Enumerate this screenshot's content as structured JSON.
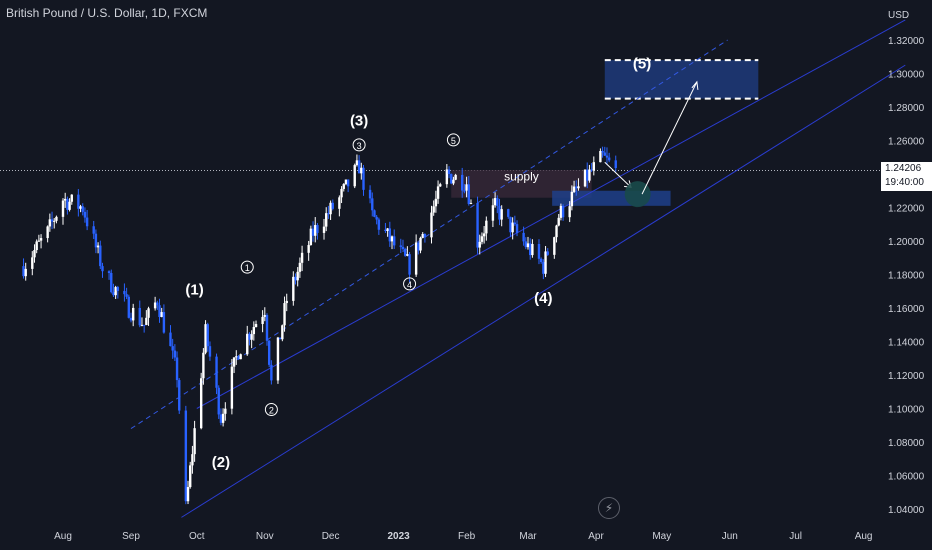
{
  "header": {
    "title": "British Pound / U.S. Dollar, 1D, FXCM"
  },
  "price_axis": {
    "currency": "USD",
    "ticks": [
      "1.32000",
      "1.30000",
      "1.28000",
      "1.26000",
      "1.22000",
      "1.20000",
      "1.18000",
      "1.16000",
      "1.14000",
      "1.12000",
      "1.10000",
      "1.08000",
      "1.06000",
      "1.04000"
    ]
  },
  "time_axis": {
    "ticks": [
      "Aug",
      "Sep",
      "Oct",
      "Nov",
      "Dec",
      "2023",
      "Feb",
      "Mar",
      "Apr",
      "May",
      "Jun",
      "Jul",
      "Aug"
    ]
  },
  "last_price": {
    "value": "1.24206",
    "countdown": "19:40:00"
  },
  "annotations": {
    "wave_major": [
      "(1)",
      "(2)",
      "(3)",
      "(4)",
      "(5)"
    ],
    "wave_minor": [
      "1",
      "2",
      "3",
      "4",
      "5"
    ],
    "supply_label": "supply"
  },
  "colors": {
    "background": "#131722",
    "candle_up": "#ffffff",
    "candle_down": "#2962ff",
    "channel": "#2a3ccf",
    "target_box": "#1e3a7a",
    "axis_text": "#d1d4dc"
  },
  "chart_data": {
    "type": "candlestick",
    "title": "British Pound / U.S. Dollar, 1D, FXCM",
    "ylabel": "USD",
    "ylim": [
      1.035,
      1.335
    ],
    "x_ticks": [
      "Aug",
      "Sep",
      "Oct",
      "Nov",
      "Dec",
      "2023",
      "Feb",
      "Mar",
      "Apr",
      "May",
      "Jun",
      "Jul",
      "Aug"
    ],
    "close_path": [
      {
        "date": "2022-07-14",
        "close": 1.185
      },
      {
        "date": "2022-07-25",
        "close": 1.205
      },
      {
        "date": "2022-08-01",
        "close": 1.225
      },
      {
        "date": "2022-08-10",
        "close": 1.22
      },
      {
        "date": "2022-08-20",
        "close": 1.18
      },
      {
        "date": "2022-08-31",
        "close": 1.16
      },
      {
        "date": "2022-09-07",
        "close": 1.15
      },
      {
        "date": "2022-09-13",
        "close": 1.165
      },
      {
        "date": "2022-09-22",
        "close": 1.12
      },
      {
        "date": "2022-09-26",
        "close": 1.04
      },
      {
        "date": "2022-10-05",
        "close": 1.145
      },
      {
        "date": "2022-10-12",
        "close": 1.095
      },
      {
        "date": "2022-10-20",
        "close": 1.135
      },
      {
        "date": "2022-11-01",
        "close": 1.16
      },
      {
        "date": "2022-11-04",
        "close": 1.115
      },
      {
        "date": "2022-11-11",
        "close": 1.165
      },
      {
        "date": "2022-11-23",
        "close": 1.205
      },
      {
        "date": "2022-12-05",
        "close": 1.225
      },
      {
        "date": "2022-12-14",
        "close": 1.245
      },
      {
        "date": "2022-12-20",
        "close": 1.215
      },
      {
        "date": "2023-01-06",
        "close": 1.185
      },
      {
        "date": "2023-01-23",
        "close": 1.24
      },
      {
        "date": "2023-02-01",
        "close": 1.235
      },
      {
        "date": "2023-02-06",
        "close": 1.2
      },
      {
        "date": "2023-02-14",
        "close": 1.22
      },
      {
        "date": "2023-03-08",
        "close": 1.185
      },
      {
        "date": "2023-03-15",
        "close": 1.215
      },
      {
        "date": "2023-03-23",
        "close": 1.23
      },
      {
        "date": "2023-04-04",
        "close": 1.25
      },
      {
        "date": "2023-04-10",
        "close": 1.242
      }
    ],
    "channel_lines": [
      {
        "style": "solid",
        "from": {
          "date": "2022-10-01",
          "price": 1.1
        },
        "to": {
          "date": "2023-08-20",
          "price": 1.332
        }
      },
      {
        "style": "dashed",
        "from": {
          "date": "2022-09-01",
          "price": 1.088
        },
        "to": {
          "date": "2023-05-31",
          "price": 1.32
        }
      },
      {
        "style": "solid",
        "from": {
          "date": "2022-09-24",
          "price": 1.035
        },
        "to": {
          "date": "2023-08-20",
          "price": 1.305
        }
      }
    ],
    "target_box": {
      "label": "(5)",
      "from": "2023-04-05",
      "to": "2023-06-14",
      "y": [
        1.285,
        1.308
      ]
    },
    "supply_zone": {
      "label": "supply",
      "from": "2023-01-25",
      "to": "2023-03-30",
      "y": [
        1.233,
        1.24
      ]
    },
    "demand_zone": {
      "from": "2023-03-12",
      "to": "2023-05-05",
      "y": [
        1.221,
        1.23
      ]
    },
    "wave_labels": [
      {
        "text": "(1)",
        "date": "2022-09-30",
        "price": 1.168
      },
      {
        "text": "(2)",
        "date": "2022-10-12",
        "price": 1.065
      },
      {
        "text": "(3)",
        "date": "2022-12-14",
        "price": 1.269
      },
      {
        "text": "(4)",
        "date": "2023-03-08",
        "price": 1.163
      },
      {
        "text": "(5)",
        "date": "2023-04-22",
        "price": 1.303
      },
      {
        "text": "1",
        "date": "2022-10-24",
        "price": 1.182
      },
      {
        "text": "2",
        "date": "2022-11-04",
        "price": 1.097
      },
      {
        "text": "3",
        "date": "2022-12-14",
        "price": 1.255
      },
      {
        "text": "4",
        "date": "2023-01-06",
        "price": 1.172
      },
      {
        "text": "5",
        "date": "2023-01-26",
        "price": 1.258
      }
    ]
  }
}
